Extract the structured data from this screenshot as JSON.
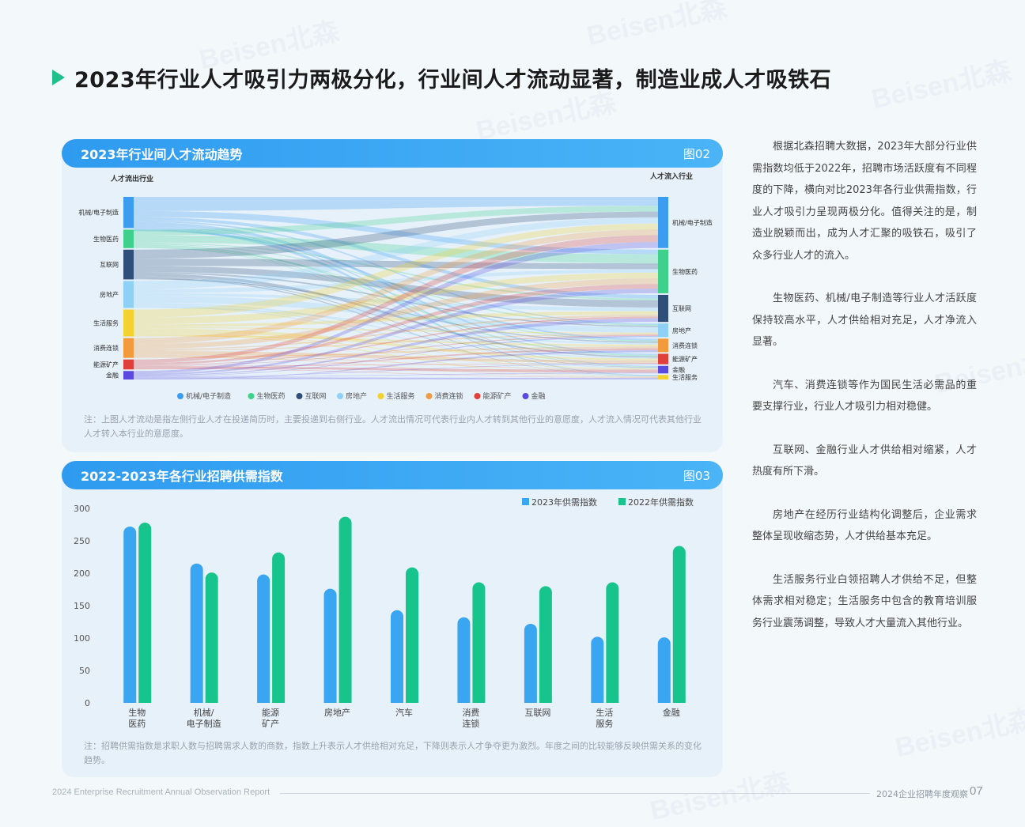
{
  "headline": "2023年行业人才吸引力两极分化，行业间人才流动显著，制造业成人才吸铁石",
  "watermark_text": "Beisen北森",
  "figure02": {
    "title": "2023年行业间人才流动趋势",
    "fig_no": "图02",
    "left_axis_title": "人才流出行业",
    "right_axis_title": "人才流入行业",
    "left_nodes": [
      "机械/电子制造",
      "生物医药",
      "互联网",
      "房地产",
      "生活服务",
      "消费连锁",
      "能源矿产",
      "金融"
    ],
    "right_nodes": [
      "机械/电子制造",
      "生物医药",
      "互联网",
      "房地产",
      "消费连锁",
      "能源矿产",
      "金融",
      "生活服务"
    ],
    "legend": [
      {
        "name": "机械/电子制造",
        "color": "#3b9cf0"
      },
      {
        "name": "生物医药",
        "color": "#3fd08c"
      },
      {
        "name": "互联网",
        "color": "#2f4f7a"
      },
      {
        "name": "房地产",
        "color": "#8fd0f7"
      },
      {
        "name": "生活服务",
        "color": "#f3d22f"
      },
      {
        "name": "消费连锁",
        "color": "#f39a3c"
      },
      {
        "name": "能源矿产",
        "color": "#e0403c"
      },
      {
        "name": "金融",
        "color": "#5a4ae0"
      }
    ],
    "note": "注：上图人才流动是指左侧行业人才在投递简历时，主要投递到右侧行业。人才流出情况可代表行业内人才转到其他行业的意愿度，人才流入情况可代表其他行业人才转入本行业的意愿度。"
  },
  "figure03": {
    "title": "2022-2023年各行业招聘供需指数",
    "fig_no": "图03",
    "note": "注：招聘供需指数是求职人数与招聘需求人数的商数，指数上升表示人才供给相对充足，下降则表示人才争夺更为激烈。年度之间的比较能够反映供需关系的变化趋势。"
  },
  "chart_data": {
    "type": "bar",
    "categories": [
      "生物\n医药",
      "机械/\n电子制造",
      "能源\n矿产",
      "房地产",
      "汽车",
      "消费\n连锁",
      "互联网",
      "生活\n服务",
      "金融"
    ],
    "series": [
      {
        "name": "2023年供需指数",
        "color": "#3aa6f2",
        "values": [
          272,
          215,
          198,
          176,
          143,
          132,
          122,
          102,
          101
        ]
      },
      {
        "name": "2022年供需指数",
        "color": "#17c58c",
        "values": [
          278,
          201,
          232,
          287,
          209,
          186,
          180,
          186,
          242
        ]
      }
    ],
    "yticks": [
      0,
      50,
      100,
      150,
      200,
      250,
      300
    ],
    "ylim": [
      0,
      300
    ],
    "grid": false,
    "legend_position": "top-right"
  },
  "paragraphs": [
    "根据北森招聘大数据，2023年大部分行业供需指数均低于2022年，招聘市场活跃度有不同程度的下降，横向对比2023年各行业供需指数，行业人才吸引力呈现两极分化。值得关注的是，制造业脱颖而出，成为人才汇聚的吸铁石，吸引了众多行业人才的流入。",
    "生物医药、机械/电子制造等行业人才活跃度保持较高水平，人才供给相对充足，人才净流入显著。",
    "汽车、消费连锁等作为国民生活必需品的重要支撑行业，行业人才吸引力相对稳健。",
    "互联网、金融行业人才供给相对缩紧，人才热度有所下滑。",
    "房地产在经历行业结构化调整后，企业需求整体呈现收缩态势，人才供给基本充足。",
    "生活服务行业白领招聘人才供给不足，但整体需求相对稳定；生活服务中包含的教育培训服务行业震荡调整，导致人才大量流入其他行业。"
  ],
  "footer": {
    "left": "2024 Enterprise Recruitment Annual Observation Report",
    "right": "2024企业招聘年度观察",
    "page": "07"
  }
}
